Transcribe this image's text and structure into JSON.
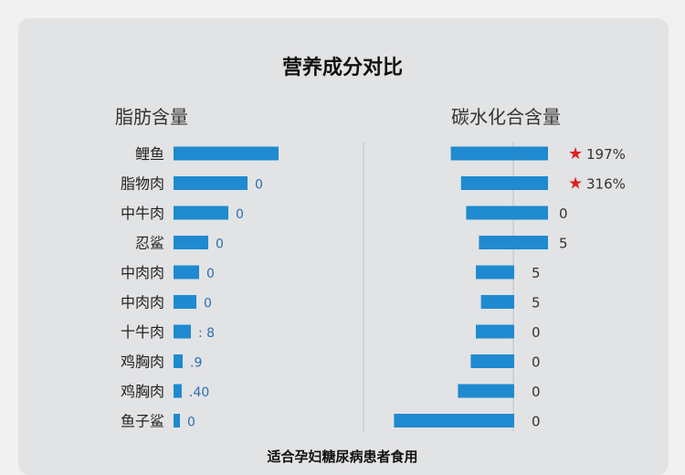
{
  "title": "营养成分对比",
  "footer": "适合孕妇糖尿病患者食用",
  "colors": {
    "bar": "#1f8ad0",
    "star": "#e0201c",
    "background": "#e2e3e5"
  },
  "chart_data": [
    {
      "type": "bar",
      "orientation": "horizontal",
      "title": "脂肪含量",
      "categories": [
        "鲤鱼",
        "脂物肉",
        "中牛肉",
        "忍鲨",
        "中肉肉",
        "中肉肉",
        "十牛肉",
        "鸡胸肉",
        "鸡胸肉",
        "鱼子鲨"
      ],
      "values": [
        115,
        81,
        60,
        38,
        28,
        25,
        19,
        10,
        9,
        7
      ],
      "value_labels": [
        "",
        "0",
        "0",
        "0",
        "0",
        "0",
        ": 8",
        ".9",
        ".40",
        "0"
      ],
      "grid": false
    },
    {
      "type": "bar",
      "orientation": "horizontal",
      "title": "碳水化合含量",
      "categories": [
        "鲤鱼",
        "脂物肉",
        "中牛肉",
        "忍鲨",
        "中肉肉",
        "中肉肉",
        "十牛肉",
        "鸡胸肉",
        "鸡胸肉",
        "鱼子鲨"
      ],
      "values": [
        38,
        34,
        32,
        27,
        15,
        13,
        15,
        17,
        22,
        47
      ],
      "value_labels": [
        "197%",
        "316%",
        "0",
        "5",
        "5",
        "5",
        "0",
        "0",
        "0",
        "0"
      ],
      "starred": [
        true,
        true,
        false,
        false,
        false,
        false,
        false,
        false,
        false,
        false
      ],
      "grid": false
    }
  ]
}
